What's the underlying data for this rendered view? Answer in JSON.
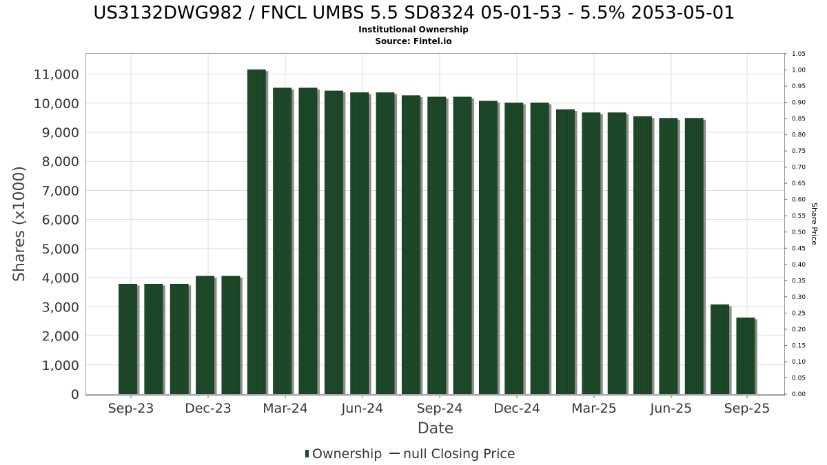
{
  "chart_data": {
    "type": "bar",
    "title": "US3132DWG982 / FNCL UMBS 5.5 SD8324 05-01-53 - 5.5% 2053-05-01",
    "subtitle": "Institutional Ownership",
    "source": "Source: Fintel.io",
    "xlabel": "Date",
    "ylabel": "Shares (x1000)",
    "y2label": "Share Price",
    "ylim": [
      0,
      11700
    ],
    "y2lim": [
      0,
      1.05
    ],
    "yticks": [
      "0",
      "1,000",
      "2,000",
      "3,000",
      "4,000",
      "5,000",
      "6,000",
      "7,000",
      "8,000",
      "9,000",
      "10,000",
      "11,000"
    ],
    "y2ticks": [
      "0.00",
      "0.05",
      "0.10",
      "0.15",
      "0.20",
      "0.25",
      "0.30",
      "0.35",
      "0.40",
      "0.45",
      "0.50",
      "0.55",
      "0.60",
      "0.65",
      "0.70",
      "0.75",
      "0.80",
      "0.85",
      "0.90",
      "0.95",
      "1.00",
      "1.05"
    ],
    "xticks": [
      "Sep-23",
      "Dec-23",
      "Mar-24",
      "Jun-24",
      "Sep-24",
      "Dec-24",
      "Mar-25",
      "Jun-25",
      "Sep-25"
    ],
    "series": [
      {
        "name": "Ownership",
        "color": "#1e4a2a",
        "values": [
          3780,
          3780,
          3780,
          4050,
          4050,
          11150,
          10520,
          10520,
          10420,
          10360,
          10360,
          10260,
          10210,
          10210,
          10070,
          10010,
          10010,
          9780,
          9670,
          9670,
          9540,
          9480,
          9480,
          3070,
          2620
        ]
      }
    ],
    "legend": {
      "position": "bottom",
      "items": [
        "Ownership",
        "null Closing Price"
      ]
    },
    "grid": true
  }
}
